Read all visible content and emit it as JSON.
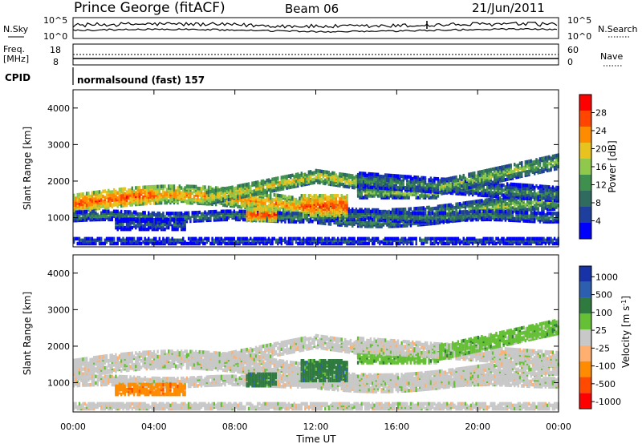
{
  "header": {
    "station": "Prince George (fitACF)",
    "beam": "Beam 06",
    "date": "21/Jun/2011"
  },
  "top_panels": {
    "nsky_label": "N.Sky",
    "nsky_ticks": [
      "10^5",
      "10^0"
    ],
    "nsearch_label": "N.Search",
    "nsearch_ticks": [
      "10^5",
      "10^0"
    ],
    "freq_label": "Freq.",
    "freq_unit": "[MHz]",
    "freq_ticks": [
      "18",
      "8"
    ],
    "nave_label": "Nave",
    "nave_ticks": [
      "60",
      "0"
    ],
    "cpid_label": "CPID",
    "cpid_text": "normalsound (fast) 157"
  },
  "colors": {
    "power_scale": [
      "#0000ff",
      "#1e3f9e",
      "#2f6b5e",
      "#3f8f4f",
      "#8fc84b",
      "#e8c21e",
      "#ff8c00",
      "#ff4500",
      "#ff0000"
    ],
    "velocity_scale": [
      "#1833a8",
      "#2d5fb0",
      "#2f7a3f",
      "#66c035",
      "#c8c8c8",
      "#ffb070",
      "#ff8c00",
      "#ff4a00",
      "#ff0000"
    ]
  },
  "chart_data": [
    {
      "type": "heatmap",
      "name": "power",
      "ylabel": "Slant Range [km]",
      "ylim": [
        200,
        4500
      ],
      "y_ticks": [
        1000,
        2000,
        3000,
        4000
      ],
      "colorbar_label": "Power [dB]",
      "colorbar_ticks": [
        "4",
        "8",
        "12",
        "16",
        "20",
        "24",
        "28"
      ],
      "colorbar_range": [
        0,
        32
      ]
    },
    {
      "type": "heatmap",
      "name": "velocity",
      "ylabel": "Slant Range [km]",
      "xlabel": "Time UT",
      "ylim": [
        200,
        4500
      ],
      "y_ticks": [
        1000,
        2000,
        3000,
        4000
      ],
      "colorbar_label": "Velocity [m s^-1]",
      "colorbar_ticks": [
        "1000",
        "500",
        "100",
        "25",
        "-25",
        "-100",
        "-500",
        "-1000"
      ]
    }
  ],
  "x_axis": {
    "xlim": [
      0,
      24
    ],
    "x_ticks": [
      0,
      4,
      8,
      12,
      16,
      20,
      24
    ],
    "x_tick_labels": [
      "00:00",
      "04:00",
      "08:00",
      "12:00",
      "16:00",
      "20:00",
      "00:00"
    ],
    "xlabel": "Time UT"
  }
}
